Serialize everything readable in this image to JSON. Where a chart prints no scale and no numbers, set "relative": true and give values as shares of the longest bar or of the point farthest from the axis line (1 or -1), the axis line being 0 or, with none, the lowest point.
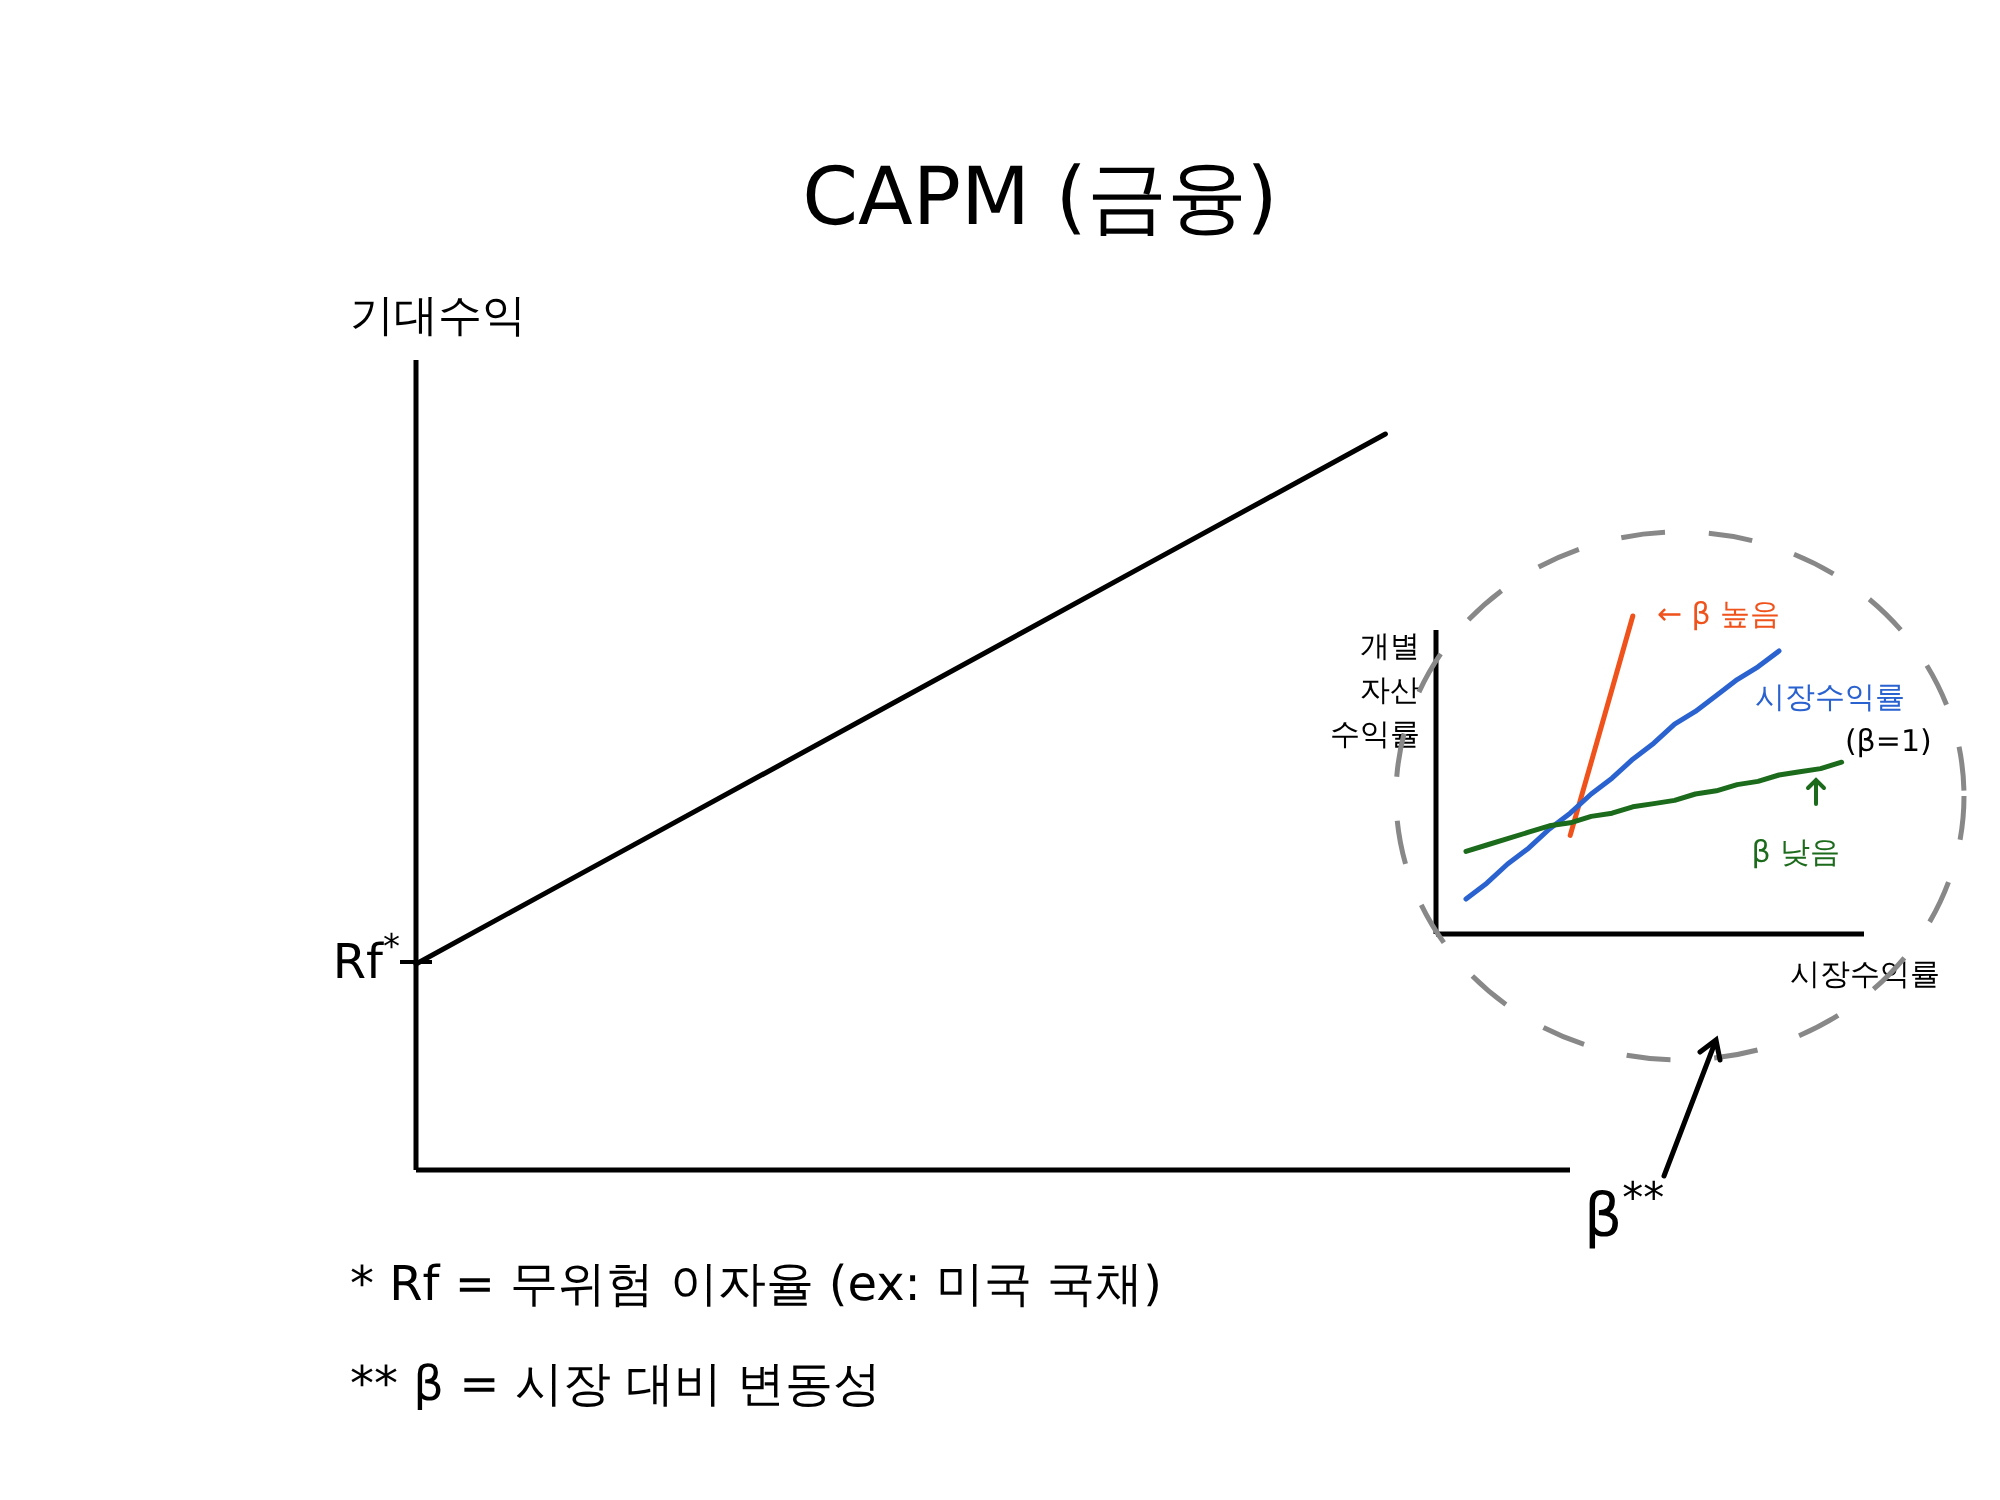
{
  "chart_data": [
    {
      "type": "line",
      "title": "CAPM (금융)",
      "xlabel": "β$^{**}$",
      "ylabel": "기대수익",
      "relative": true,
      "color": "#000000",
      "categories": [
        null,
        null,
        null,
        null,
        null,
        null,
        null,
        null,
        null
      ],
      "values": [
        0.28,
        0.37,
        0.46,
        0.55,
        0.64,
        0.73,
        0.82,
        0.91,
        1
      ],
      "annotations": [
        "Rf$^{*}$",
        "* Rf = 무위험 이자율 (ex: 미국 국채)",
        "** β = 시장 대비 변동성"
      ]
    },
    {
      "type": "line",
      "xlabel": "시장수익률",
      "ylabel": "개별 자산 수익률",
      "relative": true,
      "categories": [
        null,
        null,
        null,
        null,
        null,
        null,
        null,
        null,
        null,
        null,
        null,
        null,
        null,
        null,
        null,
        null,
        null,
        null,
        null
      ],
      "series": [
        {
          "name": "← β 높음",
          "color": "#f0521c",
          "values": [
            null,
            null,
            null,
            null,
            null,
            0.31,
            0.54,
            0.77,
            1,
            null,
            null,
            null,
            null,
            null,
            null,
            null,
            null,
            null,
            null
          ]
        },
        {
          "name": "시장수익률 (β=1)",
          "color": "#2a62d0",
          "values": [
            0.11,
            0.16,
            0.22,
            0.27,
            0.33,
            0.38,
            0.44,
            0.49,
            0.55,
            0.6,
            0.66,
            0.7,
            0.75,
            0.8,
            0.84,
            0.89,
            null,
            null,
            null
          ]
        },
        {
          "name": "β 낮음",
          "color": "#1c6b1c",
          "values": [
            0.26,
            0.28,
            0.3,
            0.32,
            0.34,
            0.35,
            0.37,
            0.38,
            0.4,
            0.41,
            0.42,
            0.44,
            0.45,
            0.47,
            0.48,
            0.5,
            0.51,
            0.52,
            0.54
          ]
        }
      ]
    }
  ]
}
